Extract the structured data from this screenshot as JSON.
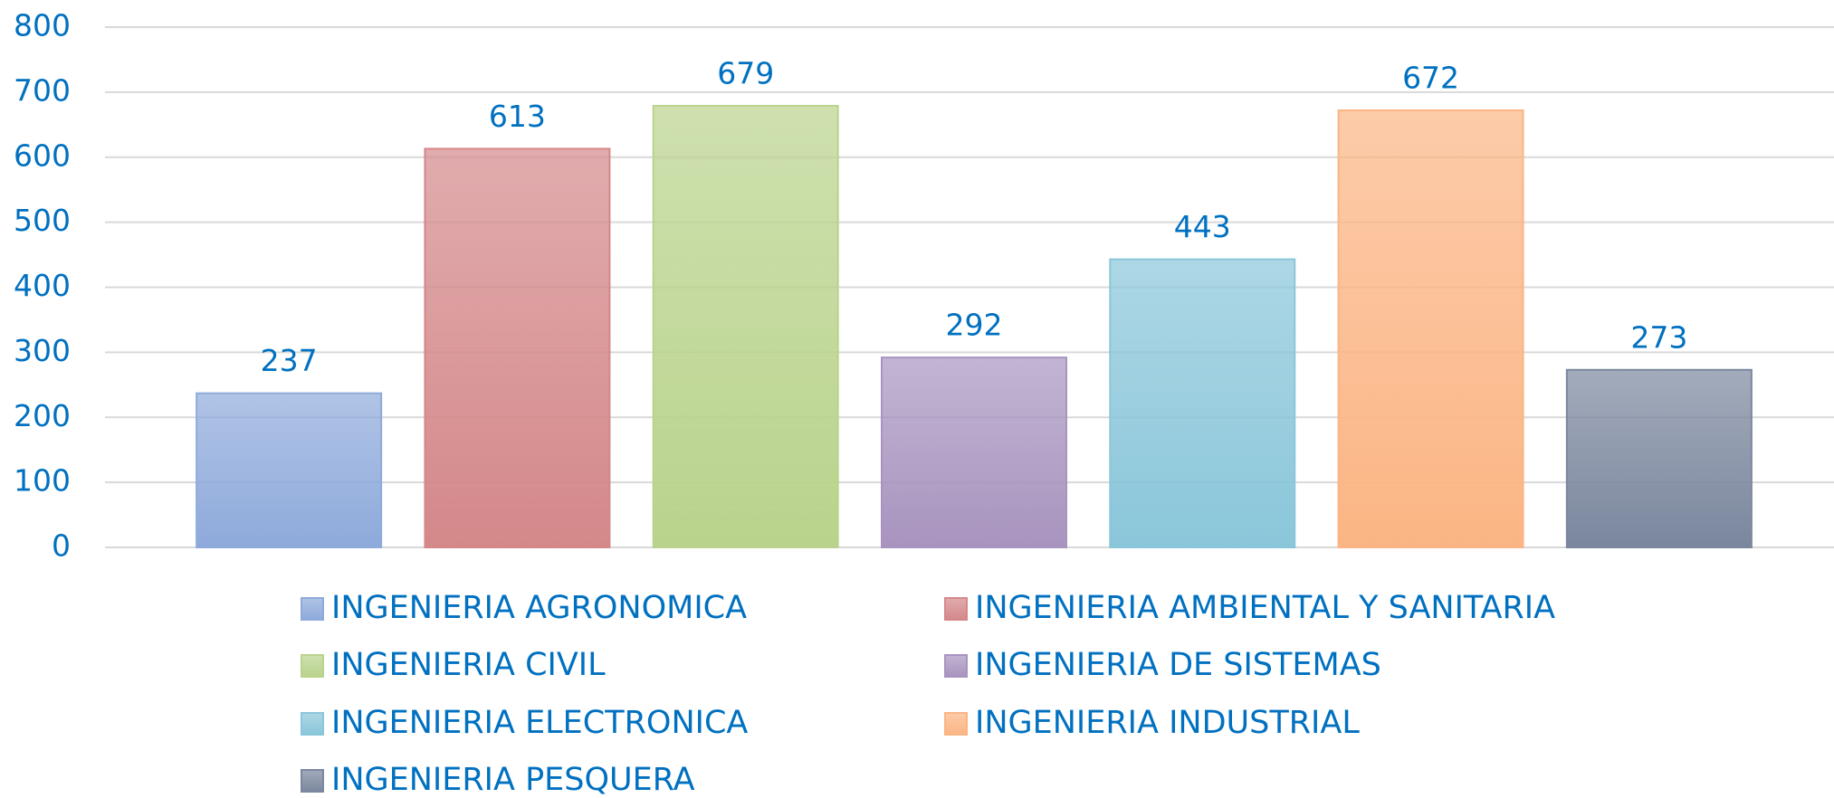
{
  "chart_data": {
    "type": "bar",
    "categories": [
      "INGENIERIA AGRONOMICA",
      "INGENIERIA AMBIENTAL Y SANITARIA",
      "INGENIERIA CIVIL",
      "INGENIERIA DE SISTEMAS",
      "INGENIERIA ELECTRONICA",
      "INGENIERIA INDUSTRIAL",
      "INGENIERIA PESQUERA"
    ],
    "values": [
      237,
      613,
      679,
      292,
      443,
      672,
      273
    ],
    "colors": [
      "#8eaadb",
      "#d4888a",
      "#b9d38c",
      "#a894bf",
      "#8ac6da",
      "#fbb584",
      "#7b879e"
    ],
    "ylim": [
      0,
      800
    ],
    "yticks": [
      0,
      100,
      200,
      300,
      400,
      500,
      600,
      700,
      800
    ],
    "grid": true
  }
}
